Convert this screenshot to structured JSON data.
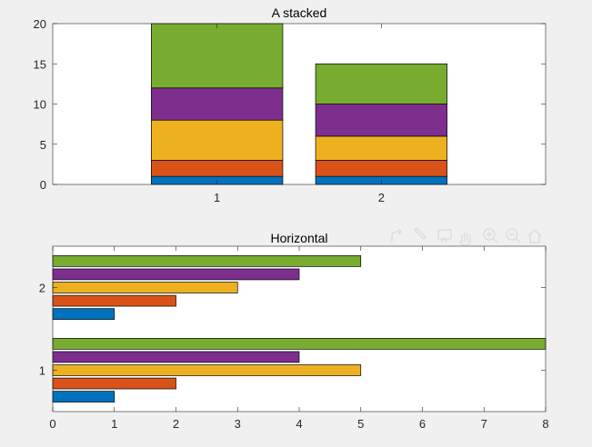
{
  "chart_data": [
    {
      "type": "bar",
      "orientation": "vertical",
      "stacked": true,
      "title": "A stacked",
      "categories": [
        "1",
        "2"
      ],
      "series": [
        {
          "values": [
            1,
            1
          ],
          "color": "#0072BD"
        },
        {
          "values": [
            2,
            2
          ],
          "color": "#D95319"
        },
        {
          "values": [
            5,
            3
          ],
          "color": "#EDB120"
        },
        {
          "values": [
            4,
            4
          ],
          "color": "#7E2F8E"
        },
        {
          "values": [
            8,
            5
          ],
          "color": "#77AC30"
        }
      ],
      "ylim": [
        0,
        20
      ],
      "yticks": [
        "0",
        "5",
        "10",
        "15",
        "20"
      ],
      "xlim": [
        0,
        3
      ],
      "grid": false
    },
    {
      "type": "bar",
      "orientation": "horizontal",
      "stacked": false,
      "title": "Horizontal",
      "categories": [
        "1",
        "2"
      ],
      "series": [
        {
          "values": [
            1,
            1
          ],
          "color": "#0072BD"
        },
        {
          "values": [
            2,
            2
          ],
          "color": "#D95319"
        },
        {
          "values": [
            5,
            3
          ],
          "color": "#EDB120"
        },
        {
          "values": [
            4,
            4
          ],
          "color": "#7E2F8E"
        },
        {
          "values": [
            8,
            5
          ],
          "color": "#77AC30"
        }
      ],
      "xlim": [
        0,
        8
      ],
      "xticks": [
        "0",
        "1",
        "2",
        "3",
        "4",
        "5",
        "6",
        "7",
        "8"
      ],
      "ylim": [
        0.5,
        2.5
      ],
      "grid": false
    }
  ],
  "toolbar": {
    "icons": [
      "export-icon",
      "brush-icon",
      "datatip-icon",
      "pan-icon",
      "zoom-in-icon",
      "zoom-out-icon",
      "home-icon"
    ]
  }
}
